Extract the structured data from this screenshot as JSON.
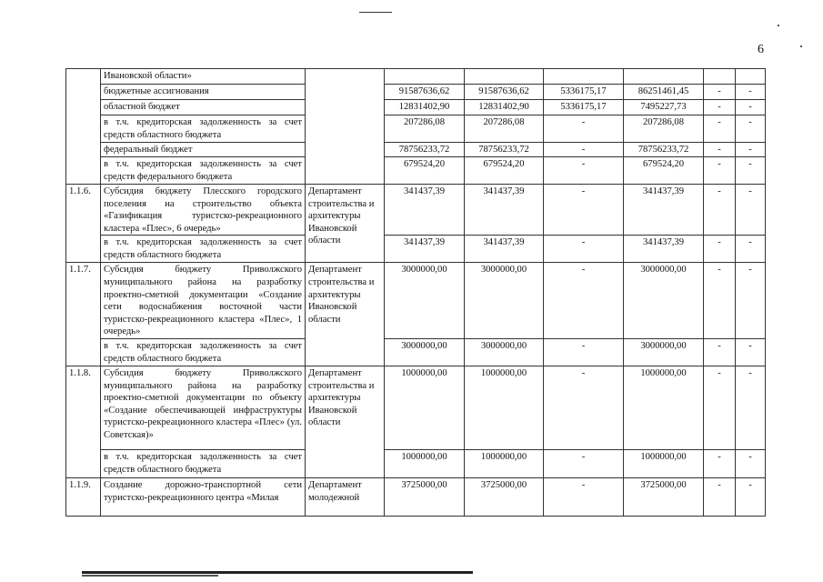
{
  "page_number": "6",
  "rows": [
    {
      "desc": "Ивановской области»",
      "v": [
        "",
        "",
        "",
        "",
        "",
        ""
      ]
    },
    {
      "desc": "бюджетные ассигнования",
      "v": [
        "91587636,62",
        "91587636,62",
        "5336175,17",
        "86251461,45",
        "-",
        "-"
      ]
    },
    {
      "desc": "областной бюджет",
      "v": [
        "12831402,90",
        "12831402,90",
        "5336175,17",
        "7495227,73",
        "-",
        "-"
      ]
    },
    {
      "desc": "в т.ч. кредиторская задолженность за счет средств областного бюджета",
      "v": [
        "207286,08",
        "207286,08",
        "-",
        "207286,08",
        "-",
        "-"
      ]
    },
    {
      "desc": "федеральный бюджет",
      "v": [
        "78756233,72",
        "78756233,72",
        "-",
        "78756233,72",
        "-",
        "-"
      ]
    },
    {
      "desc": "в т.ч. кредиторская задолженность за счет средств федерального бюджета",
      "v": [
        "679524,20",
        "679524,20",
        "-",
        "679524,20",
        "-",
        "-"
      ]
    }
  ],
  "items": [
    {
      "num": "1.1.6.",
      "desc": "Субсидия бюджету Плесского городского поселения на строительство объекта «Газификация туристско-рекреационного кластера «Плес», 6 очередь»",
      "dept": "Департамент строительства и архитектуры Ивановской области",
      "v": [
        "341437,39",
        "341437,39",
        "-",
        "341437,39",
        "-",
        "-"
      ],
      "sub": {
        "desc": "в т.ч. кредиторская задолженность за счет средств областного бюджета",
        "v": [
          "341437,39",
          "341437,39",
          "-",
          "341437,39",
          "-",
          "-"
        ]
      }
    },
    {
      "num": "1.1.7.",
      "desc": "Субсидия бюджету Приволжского муниципального района на разработку проектно-сметной документации «Создание сети водоснабжения восточной части туристско-рекреационного кластера «Плес», 1 очередь»",
      "dept": "Департамент строительства и архитектуры Ивановской области",
      "v": [
        "3000000,00",
        "3000000,00",
        "-",
        "3000000,00",
        "-",
        "-"
      ],
      "sub": {
        "desc": "в т.ч. кредиторская задолженность за счет средств областного бюджета",
        "v": [
          "3000000,00",
          "3000000,00",
          "-",
          "3000000,00",
          "-",
          "-"
        ]
      }
    },
    {
      "num": "1.1.8.",
      "desc": "Субсидия бюджету Приволжского муниципального района на разработку проектно-сметной документации по объекту «Создание обеспечивающей инфраструктуры туристско-рекреационного кластера «Плес» (ул. Советская)»",
      "dept": "Департамент строительства и архитектуры Ивановской области",
      "v": [
        "1000000,00",
        "1000000,00",
        "-",
        "1000000,00",
        "-",
        "-"
      ],
      "sub": {
        "desc": "в т.ч. кредиторская задолженность за счет средств областного бюджета",
        "v": [
          "1000000,00",
          "1000000,00",
          "-",
          "1000000,00",
          "-",
          "-"
        ]
      }
    },
    {
      "num": "1.1.9.",
      "desc": "Создание дорожно-транспортной сети туристско-рекреационного центра «Милая",
      "dept": "Департамент молодежной",
      "v": [
        "3725000,00",
        "3725000,00",
        "-",
        "3725000,00",
        "-",
        "-"
      ]
    }
  ]
}
